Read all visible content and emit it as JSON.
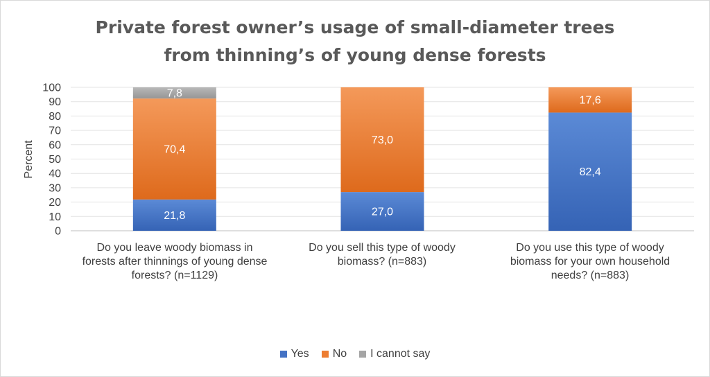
{
  "chart_data": {
    "type": "bar",
    "stacked": true,
    "title_lines": [
      "Private forest owner’s usage of small-diameter trees",
      "from thinning’s of young dense forests"
    ],
    "ylabel": "Percent",
    "ylim": [
      0,
      100
    ],
    "yticks": [
      0,
      10,
      20,
      30,
      40,
      50,
      60,
      70,
      80,
      90,
      100
    ],
    "grid": true,
    "legend_position": "bottom",
    "categories": [
      [
        "Do you leave woody biomass in",
        "forests after thinnings of young dense",
        "forests? (n=1129)"
      ],
      [
        "Do you sell this type of woody",
        "biomass? (n=883)"
      ],
      [
        "Do you use this type of woody",
        "biomass for your own household",
        "needs? (n=883)"
      ]
    ],
    "series": [
      {
        "name": "Yes",
        "color": "#4472c4",
        "values": [
          21.8,
          27.0,
          82.4
        ],
        "labels": [
          "21,8",
          "27,0",
          "82,4"
        ]
      },
      {
        "name": "No",
        "color": "#ed7d31",
        "values": [
          70.4,
          73.0,
          17.6
        ],
        "labels": [
          "70,4",
          "73,0",
          "17,6"
        ]
      },
      {
        "name": "I cannot say",
        "color": "#a5a5a5",
        "values": [
          7.8,
          0,
          0
        ],
        "labels": [
          "7,8",
          "",
          ""
        ]
      }
    ]
  }
}
